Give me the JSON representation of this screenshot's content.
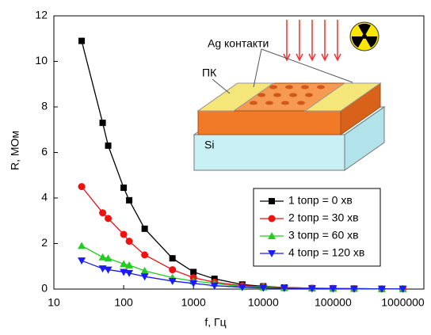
{
  "chart_data": {
    "type": "line",
    "x_label": "f, Гц",
    "y_label": "R, МОм",
    "xscale": "log",
    "xlim": [
      10,
      2000000
    ],
    "xticks": [
      10,
      100,
      1000,
      10000,
      100000,
      1000000
    ],
    "ylim": [
      0,
      12
    ],
    "yticks": [
      0,
      2,
      4,
      6,
      8,
      10,
      12
    ],
    "legend": "center right",
    "x": [
      25,
      50,
      60,
      100,
      120,
      200,
      500,
      1000,
      2000,
      5000,
      10000,
      20000,
      50000,
      100000,
      200000,
      500000,
      1000000
    ],
    "series": [
      {
        "name": "1  tопр = 0 хв",
        "color": "#000000",
        "marker": "square",
        "values": [
          10.9,
          7.3,
          6.3,
          4.45,
          3.9,
          2.65,
          1.35,
          0.75,
          0.45,
          0.2,
          0.12,
          0.07,
          0.04,
          0.03,
          0.02,
          0.01,
          0.01
        ]
      },
      {
        "name": "2  tопр = 30 хв",
        "color": "#ee1111",
        "marker": "circle",
        "values": [
          4.5,
          3.35,
          3.1,
          2.4,
          2.1,
          1.5,
          0.85,
          0.5,
          0.3,
          0.15,
          0.1,
          0.06,
          0.04,
          0.03,
          0.02,
          0.01,
          0.01
        ]
      },
      {
        "name": "3  tопр = 60 хв",
        "color": "#22cc22",
        "marker": "triangle-up",
        "values": [
          1.9,
          1.4,
          1.35,
          1.1,
          1.05,
          0.8,
          0.5,
          0.35,
          0.25,
          0.1,
          0.08,
          0.05,
          0.03,
          0.02,
          0.02,
          0.01,
          0.01
        ]
      },
      {
        "name": "4  tопр = 120 хв",
        "color": "#1a1aff",
        "marker": "triangle-down",
        "values": [
          1.25,
          0.9,
          0.85,
          0.75,
          0.7,
          0.55,
          0.35,
          0.25,
          0.15,
          0.08,
          0.05,
          0.04,
          0.02,
          0.02,
          0.01,
          0.01,
          0.01
        ]
      }
    ]
  },
  "diagram": {
    "contacts": "Ag контакти",
    "porous": "ПК",
    "substrate": "Si"
  }
}
